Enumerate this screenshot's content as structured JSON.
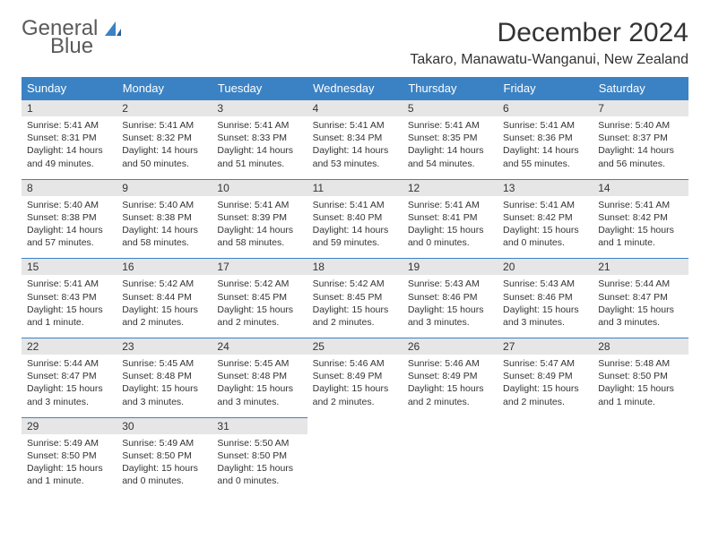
{
  "logo": {
    "text1": "General",
    "text2": "Blue"
  },
  "title": "December 2024",
  "location": "Takaro, Manawatu-Wanganui, New Zealand",
  "headerColor": "#3b82c4",
  "dayNames": [
    "Sunday",
    "Monday",
    "Tuesday",
    "Wednesday",
    "Thursday",
    "Friday",
    "Saturday"
  ],
  "weeks": [
    [
      {
        "n": "1",
        "sr": "5:41 AM",
        "ss": "8:31 PM",
        "dl": "14 hours and 49 minutes."
      },
      {
        "n": "2",
        "sr": "5:41 AM",
        "ss": "8:32 PM",
        "dl": "14 hours and 50 minutes."
      },
      {
        "n": "3",
        "sr": "5:41 AM",
        "ss": "8:33 PM",
        "dl": "14 hours and 51 minutes."
      },
      {
        "n": "4",
        "sr": "5:41 AM",
        "ss": "8:34 PM",
        "dl": "14 hours and 53 minutes."
      },
      {
        "n": "5",
        "sr": "5:41 AM",
        "ss": "8:35 PM",
        "dl": "14 hours and 54 minutes."
      },
      {
        "n": "6",
        "sr": "5:41 AM",
        "ss": "8:36 PM",
        "dl": "14 hours and 55 minutes."
      },
      {
        "n": "7",
        "sr": "5:40 AM",
        "ss": "8:37 PM",
        "dl": "14 hours and 56 minutes."
      }
    ],
    [
      {
        "n": "8",
        "sr": "5:40 AM",
        "ss": "8:38 PM",
        "dl": "14 hours and 57 minutes."
      },
      {
        "n": "9",
        "sr": "5:40 AM",
        "ss": "8:38 PM",
        "dl": "14 hours and 58 minutes."
      },
      {
        "n": "10",
        "sr": "5:41 AM",
        "ss": "8:39 PM",
        "dl": "14 hours and 58 minutes."
      },
      {
        "n": "11",
        "sr": "5:41 AM",
        "ss": "8:40 PM",
        "dl": "14 hours and 59 minutes."
      },
      {
        "n": "12",
        "sr": "5:41 AM",
        "ss": "8:41 PM",
        "dl": "15 hours and 0 minutes."
      },
      {
        "n": "13",
        "sr": "5:41 AM",
        "ss": "8:42 PM",
        "dl": "15 hours and 0 minutes."
      },
      {
        "n": "14",
        "sr": "5:41 AM",
        "ss": "8:42 PM",
        "dl": "15 hours and 1 minute."
      }
    ],
    [
      {
        "n": "15",
        "sr": "5:41 AM",
        "ss": "8:43 PM",
        "dl": "15 hours and 1 minute."
      },
      {
        "n": "16",
        "sr": "5:42 AM",
        "ss": "8:44 PM",
        "dl": "15 hours and 2 minutes."
      },
      {
        "n": "17",
        "sr": "5:42 AM",
        "ss": "8:45 PM",
        "dl": "15 hours and 2 minutes."
      },
      {
        "n": "18",
        "sr": "5:42 AM",
        "ss": "8:45 PM",
        "dl": "15 hours and 2 minutes."
      },
      {
        "n": "19",
        "sr": "5:43 AM",
        "ss": "8:46 PM",
        "dl": "15 hours and 3 minutes."
      },
      {
        "n": "20",
        "sr": "5:43 AM",
        "ss": "8:46 PM",
        "dl": "15 hours and 3 minutes."
      },
      {
        "n": "21",
        "sr": "5:44 AM",
        "ss": "8:47 PM",
        "dl": "15 hours and 3 minutes."
      }
    ],
    [
      {
        "n": "22",
        "sr": "5:44 AM",
        "ss": "8:47 PM",
        "dl": "15 hours and 3 minutes."
      },
      {
        "n": "23",
        "sr": "5:45 AM",
        "ss": "8:48 PM",
        "dl": "15 hours and 3 minutes."
      },
      {
        "n": "24",
        "sr": "5:45 AM",
        "ss": "8:48 PM",
        "dl": "15 hours and 3 minutes."
      },
      {
        "n": "25",
        "sr": "5:46 AM",
        "ss": "8:49 PM",
        "dl": "15 hours and 2 minutes."
      },
      {
        "n": "26",
        "sr": "5:46 AM",
        "ss": "8:49 PM",
        "dl": "15 hours and 2 minutes."
      },
      {
        "n": "27",
        "sr": "5:47 AM",
        "ss": "8:49 PM",
        "dl": "15 hours and 2 minutes."
      },
      {
        "n": "28",
        "sr": "5:48 AM",
        "ss": "8:50 PM",
        "dl": "15 hours and 1 minute."
      }
    ],
    [
      {
        "n": "29",
        "sr": "5:49 AM",
        "ss": "8:50 PM",
        "dl": "15 hours and 1 minute."
      },
      {
        "n": "30",
        "sr": "5:49 AM",
        "ss": "8:50 PM",
        "dl": "15 hours and 0 minutes."
      },
      {
        "n": "31",
        "sr": "5:50 AM",
        "ss": "8:50 PM",
        "dl": "15 hours and 0 minutes."
      },
      null,
      null,
      null,
      null
    ]
  ],
  "labels": {
    "sunrise": "Sunrise:",
    "sunset": "Sunset:",
    "daylight": "Daylight:"
  }
}
